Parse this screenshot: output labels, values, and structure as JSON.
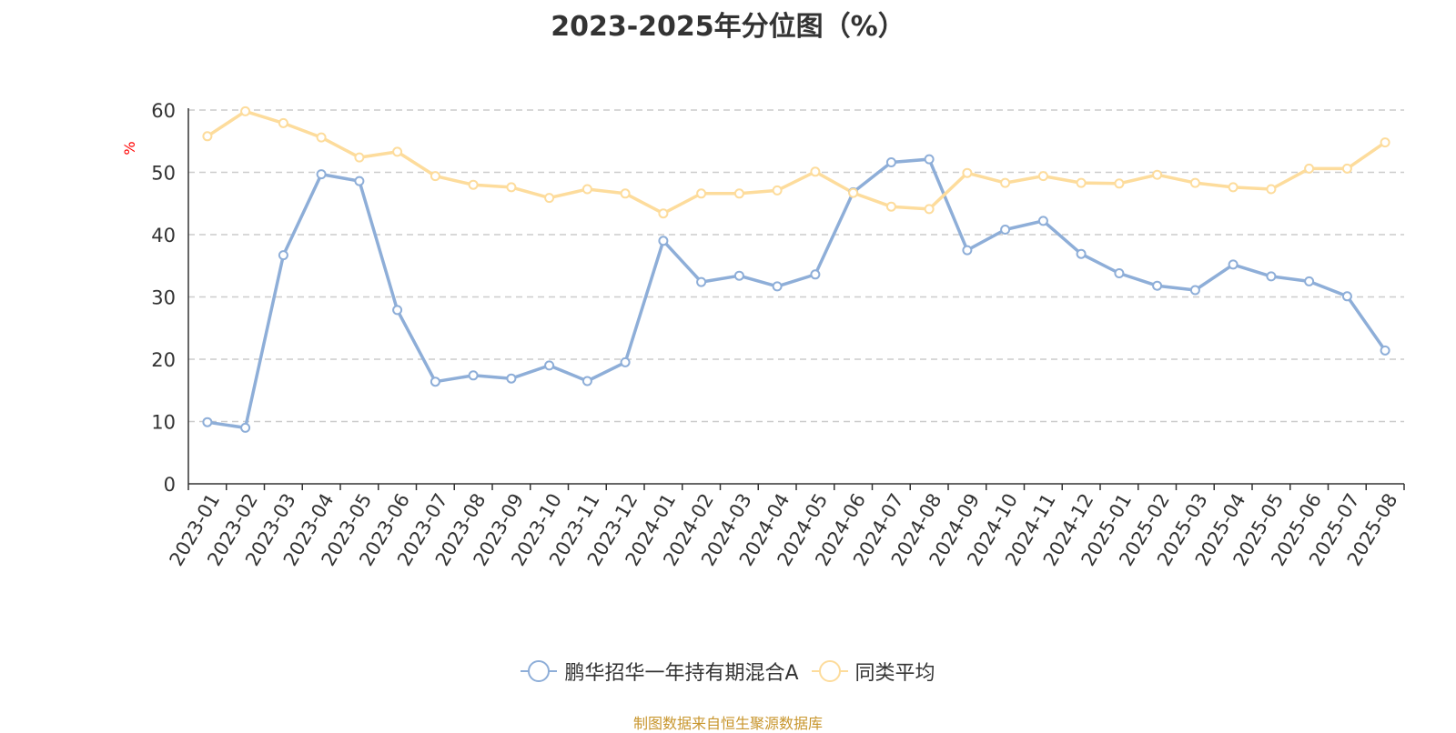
{
  "chart_data": {
    "type": "line",
    "title": "2023-2025年分位图（%）",
    "ylabel": "%",
    "xlabel": "",
    "ylim": [
      0,
      60
    ],
    "yticks": [
      0,
      10,
      20,
      30,
      40,
      50,
      60
    ],
    "grid": true,
    "legend_position": "bottom",
    "categories": [
      "2023-01",
      "2023-02",
      "2023-03",
      "2023-04",
      "2023-05",
      "2023-06",
      "2023-07",
      "2023-08",
      "2023-09",
      "2023-10",
      "2023-11",
      "2023-12",
      "2024-01",
      "2024-02",
      "2024-03",
      "2024-04",
      "2024-05",
      "2024-06",
      "2024-07",
      "2024-08",
      "2024-09",
      "2024-10",
      "2024-11",
      "2024-12",
      "2025-01",
      "2025-02",
      "2025-03",
      "2025-04",
      "2025-05",
      "2025-06",
      "2025-07",
      "2025-08"
    ],
    "series": [
      {
        "name": "鹏华招华一年持有期混合A",
        "color": "#8eaed8",
        "values": [
          9.9,
          9.0,
          36.7,
          49.7,
          48.6,
          27.9,
          16.4,
          17.4,
          16.9,
          19.0,
          16.5,
          19.5,
          39.0,
          32.4,
          33.4,
          31.7,
          33.6,
          46.8,
          51.6,
          52.1,
          37.5,
          40.8,
          42.2,
          36.9,
          33.8,
          31.8,
          31.1,
          35.2,
          33.3,
          32.5,
          30.1,
          21.4
        ]
      },
      {
        "name": "同类平均",
        "color": "#fddc9c",
        "values": [
          55.8,
          59.8,
          57.9,
          55.6,
          52.4,
          53.3,
          49.4,
          48.0,
          47.6,
          45.9,
          47.3,
          46.6,
          43.4,
          46.6,
          46.6,
          47.1,
          50.1,
          46.7,
          44.5,
          44.1,
          49.9,
          48.3,
          49.4,
          48.3,
          48.2,
          49.6,
          48.3,
          47.6,
          47.3,
          50.6,
          50.6,
          54.8
        ]
      }
    ]
  },
  "source_note": "制图数据来自恒生聚源数据库",
  "colors": {
    "grid": "#cccccc",
    "axis": "#333333",
    "unit_label": "#ff0000",
    "source_note": "#c8962e"
  }
}
